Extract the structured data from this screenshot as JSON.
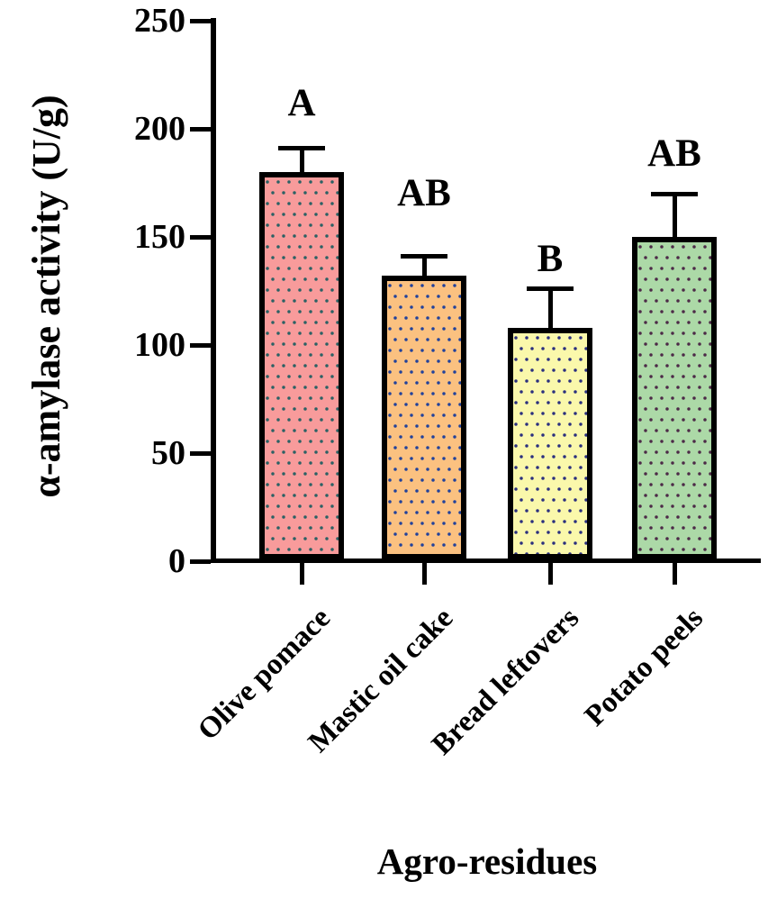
{
  "figure": {
    "background_color": "#ffffff",
    "text_color": "#000000"
  },
  "chart_data": {
    "type": "bar",
    "title": "",
    "ylabel": "α-amylase activity (U/g)",
    "xlabel": "Agro-residues",
    "ylim": [
      0,
      250
    ],
    "yticks": [
      0,
      50,
      100,
      150,
      200,
      250
    ],
    "grid": false,
    "legend_position": "none",
    "categories": [
      "Olive pomace",
      "Mastic oil cake",
      "Bread leftovers",
      "Potato peels"
    ],
    "values": [
      180,
      132,
      108,
      150
    ],
    "errors_plus": [
      12,
      10,
      19,
      21
    ],
    "significance_letters": [
      "A",
      "AB",
      "B",
      "AB"
    ],
    "bar_fill_colors": [
      "#F89B9B",
      "#FBC180",
      "#FAF8AB",
      "#ACD9A7"
    ],
    "bar_dot_colors": [
      "#2A6164",
      "#21419B",
      "#2A2F7E",
      "#4C2947"
    ],
    "bar_border_color": "#000000",
    "bar_pattern": "polka-dots",
    "error_bar_color": "#000000"
  }
}
